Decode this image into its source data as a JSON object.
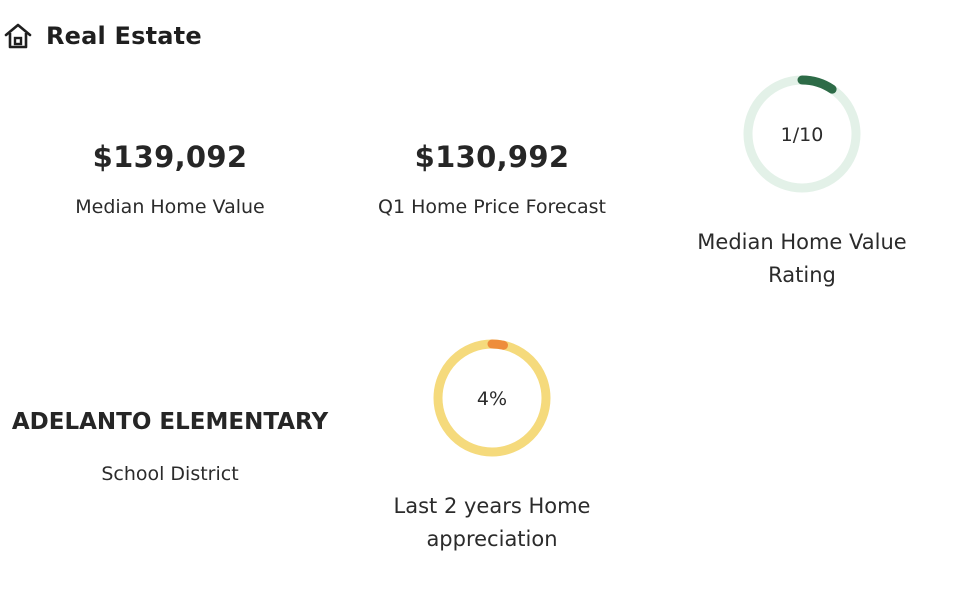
{
  "header": {
    "title": "Real Estate",
    "icon": "house-icon"
  },
  "stats": {
    "median_home_value": {
      "value": "$139,092",
      "label": "Median Home Value"
    },
    "q1_forecast": {
      "value": "$130,992",
      "label": "Q1 Home Price Forecast"
    },
    "school_district": {
      "value": "ADELANTO ELEMENTARY",
      "label": "School District"
    }
  },
  "rings": {
    "rating": {
      "text": "1/10",
      "label_line1": "Median Home Value",
      "label_line2": "Rating",
      "fraction": 0.1,
      "track_color": "#e3f1e8",
      "progress_color": "#2d6b47"
    },
    "appreciation": {
      "text": "4%",
      "label_line1": "Last 2 years Home",
      "label_line2": "appreciation",
      "fraction": 0.04,
      "track_color": "#f5da7c",
      "progress_color": "#ee8d3b"
    }
  }
}
